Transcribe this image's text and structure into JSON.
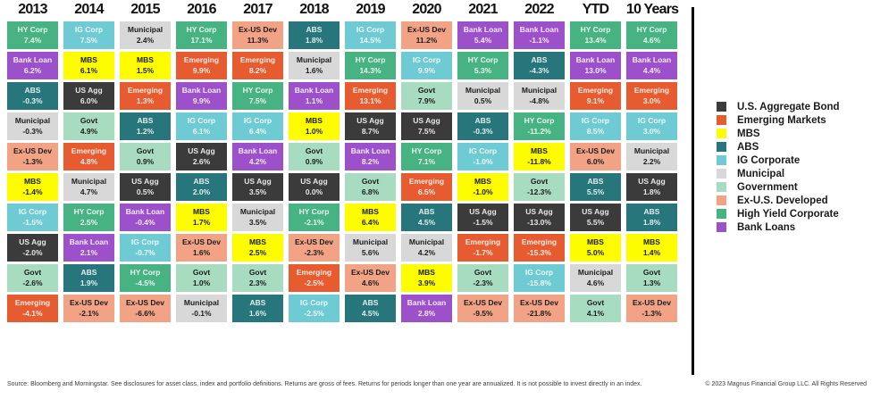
{
  "chart_data": {
    "type": "table",
    "title": "Fixed income asset class returns by calendar year (quilt chart)",
    "legend_position": "right",
    "asset_classes": [
      {
        "key": "US Agg",
        "legend_label": "U.S. Aggregate Bond",
        "color": "#3b3b3b",
        "text": "light"
      },
      {
        "key": "Emerging",
        "legend_label": "Emerging Markets",
        "color": "#e65c30",
        "text": "light"
      },
      {
        "key": "MBS",
        "legend_label": "MBS",
        "color": "#fdfd00",
        "text": "dark"
      },
      {
        "key": "ABS",
        "legend_label": "ABS",
        "color": "#26767b",
        "text": "light"
      },
      {
        "key": "IG Corp",
        "legend_label": "IG Corporate",
        "color": "#6ecbd3",
        "text": "light"
      },
      {
        "key": "Municipal",
        "legend_label": "Municipal",
        "color": "#d8d8d8",
        "text": "dark"
      },
      {
        "key": "Govt",
        "legend_label": "Government",
        "color": "#a8dcc1",
        "text": "dark"
      },
      {
        "key": "Ex-US Dev",
        "legend_label": "Ex-U.S. Developed",
        "color": "#f2a386",
        "text": "dark"
      },
      {
        "key": "HY Corp",
        "legend_label": "High Yield Corporate",
        "color": "#47b383",
        "text": "light"
      },
      {
        "key": "Bank Loan",
        "legend_label": "Bank Loans",
        "color": "#9c51cb",
        "text": "light"
      }
    ],
    "columns": [
      {
        "label": "2013",
        "cells": [
          [
            "HY Corp",
            "7.4%"
          ],
          [
            "Bank Loan",
            "6.2%"
          ],
          [
            "ABS",
            "-0.3%"
          ],
          [
            "Municipal",
            "-0.3%"
          ],
          [
            "Ex-US Dev",
            "-1.3%"
          ],
          [
            "MBS",
            "-1.4%"
          ],
          [
            "IG Corp",
            "-1.5%"
          ],
          [
            "US Agg",
            "-2.0%"
          ],
          [
            "Govt",
            "-2.6%"
          ],
          [
            "Emerging",
            "-4.1%"
          ]
        ]
      },
      {
        "label": "2014",
        "cells": [
          [
            "IG Corp",
            "7.5%"
          ],
          [
            "MBS",
            "6.1%"
          ],
          [
            "US Agg",
            "6.0%"
          ],
          [
            "Govt",
            "4.9%"
          ],
          [
            "Emerging",
            "4.8%"
          ],
          [
            "Municipal",
            "4.7%"
          ],
          [
            "HY Corp",
            "2.5%"
          ],
          [
            "Bank Loan",
            "2.1%"
          ],
          [
            "ABS",
            "1.9%"
          ],
          [
            "Ex-US Dev",
            "-2.1%"
          ]
        ]
      },
      {
        "label": "2015",
        "cells": [
          [
            "Municipal",
            "2.4%"
          ],
          [
            "MBS",
            "1.5%"
          ],
          [
            "Emerging",
            "1.3%"
          ],
          [
            "ABS",
            "1.2%"
          ],
          [
            "Govt",
            "0.9%"
          ],
          [
            "US Agg",
            "0.5%"
          ],
          [
            "Bank Loan",
            "-0.4%"
          ],
          [
            "IG Corp",
            "-0.7%"
          ],
          [
            "HY Corp",
            "-4.5%"
          ],
          [
            "Ex-US Dev",
            "-6.6%"
          ]
        ]
      },
      {
        "label": "2016",
        "cells": [
          [
            "HY Corp",
            "17.1%"
          ],
          [
            "Emerging",
            "9.9%"
          ],
          [
            "Bank Loan",
            "9.9%"
          ],
          [
            "IG Corp",
            "6.1%"
          ],
          [
            "US Agg",
            "2.6%"
          ],
          [
            "ABS",
            "2.0%"
          ],
          [
            "MBS",
            "1.7%"
          ],
          [
            "Ex-US Dev",
            "1.6%"
          ],
          [
            "Govt",
            "1.0%"
          ],
          [
            "Municipal",
            "-0.1%"
          ]
        ]
      },
      {
        "label": "2017",
        "cells": [
          [
            "Ex-US Dev",
            "11.3%"
          ],
          [
            "Emerging",
            "8.2%"
          ],
          [
            "HY Corp",
            "7.5%"
          ],
          [
            "IG Corp",
            "6.4%"
          ],
          [
            "Bank Loan",
            "4.2%"
          ],
          [
            "US Agg",
            "3.5%"
          ],
          [
            "Municipal",
            "3.5%"
          ],
          [
            "MBS",
            "2.5%"
          ],
          [
            "Govt",
            "2.3%"
          ],
          [
            "ABS",
            "1.6%"
          ]
        ]
      },
      {
        "label": "2018",
        "cells": [
          [
            "ABS",
            "1.8%"
          ],
          [
            "Municipal",
            "1.6%"
          ],
          [
            "Bank Loan",
            "1.1%"
          ],
          [
            "MBS",
            "1.0%"
          ],
          [
            "Govt",
            "0.9%"
          ],
          [
            "US Agg",
            "0.0%"
          ],
          [
            "HY Corp",
            "-2.1%"
          ],
          [
            "Ex-US Dev",
            "-2.3%"
          ],
          [
            "Emerging",
            "-2.5%"
          ],
          [
            "IG Corp",
            "-2.5%"
          ]
        ]
      },
      {
        "label": "2019",
        "cells": [
          [
            "IG Corp",
            "14.5%"
          ],
          [
            "HY Corp",
            "14.3%"
          ],
          [
            "Emerging",
            "13.1%"
          ],
          [
            "US Agg",
            "8.7%"
          ],
          [
            "Bank Loan",
            "8.2%"
          ],
          [
            "Govt",
            "6.8%"
          ],
          [
            "MBS",
            "6.4%"
          ],
          [
            "Municipal",
            "5.6%"
          ],
          [
            "Ex-US Dev",
            "4.6%"
          ],
          [
            "ABS",
            "4.5%"
          ]
        ]
      },
      {
        "label": "2020",
        "cells": [
          [
            "Ex-US Dev",
            "11.2%"
          ],
          [
            "IG Corp",
            "9.9%"
          ],
          [
            "Govt",
            "7.9%"
          ],
          [
            "US Agg",
            "7.5%"
          ],
          [
            "HY Corp",
            "7.1%"
          ],
          [
            "Emerging",
            "6.5%"
          ],
          [
            "ABS",
            "4.5%"
          ],
          [
            "Municipal",
            "4.2%"
          ],
          [
            "MBS",
            "3.9%"
          ],
          [
            "Bank Loan",
            "2.8%"
          ]
        ]
      },
      {
        "label": "2021",
        "cells": [
          [
            "Bank Loan",
            "5.4%"
          ],
          [
            "HY Corp",
            "5.3%"
          ],
          [
            "Municipal",
            "0.5%"
          ],
          [
            "ABS",
            "-0.3%"
          ],
          [
            "IG Corp",
            "-1.0%"
          ],
          [
            "MBS",
            "-1.0%"
          ],
          [
            "US Agg",
            "-1.5%"
          ],
          [
            "Emerging",
            "-1.7%"
          ],
          [
            "Govt",
            "-2.3%"
          ],
          [
            "Ex-US Dev",
            "-9.5%"
          ]
        ]
      },
      {
        "label": "2022",
        "cells": [
          [
            "Bank Loan",
            "-1.1%"
          ],
          [
            "ABS",
            "-4.3%"
          ],
          [
            "Municipal",
            "-4.8%"
          ],
          [
            "HY Corp",
            "-11.2%"
          ],
          [
            "MBS",
            "-11.8%"
          ],
          [
            "Govt",
            "-12.3%"
          ],
          [
            "US Agg",
            "-13.0%"
          ],
          [
            "Emerging",
            "-15.3%"
          ],
          [
            "IG Corp",
            "-15.8%"
          ],
          [
            "Ex-US Dev",
            "-21.8%"
          ]
        ]
      },
      {
        "label": "YTD",
        "cells": [
          [
            "HY Corp",
            "13.4%"
          ],
          [
            "Bank Loan",
            "13.0%"
          ],
          [
            "Emerging",
            "9.1%"
          ],
          [
            "IG Corp",
            "8.5%"
          ],
          [
            "Ex-US Dev",
            "6.0%"
          ],
          [
            "ABS",
            "5.5%"
          ],
          [
            "US Agg",
            "5.5%"
          ],
          [
            "MBS",
            "5.0%"
          ],
          [
            "Municipal",
            "4.6%"
          ],
          [
            "Govt",
            "4.1%"
          ]
        ]
      },
      {
        "label": "10 Years",
        "cells": [
          [
            "HY Corp",
            "4.6%"
          ],
          [
            "Bank Loan",
            "4.4%"
          ],
          [
            "Emerging",
            "3.0%"
          ],
          [
            "IG Corp",
            "3.0%"
          ],
          [
            "Municipal",
            "2.2%"
          ],
          [
            "US Agg",
            "1.8%"
          ],
          [
            "ABS",
            "1.8%"
          ],
          [
            "MBS",
            "1.4%"
          ],
          [
            "Govt",
            "1.3%"
          ],
          [
            "Ex-US Dev",
            "-1.3%"
          ]
        ]
      }
    ]
  },
  "footer": {
    "source": "Source: Bloomberg and Morningstar. See disclosures for asset class, index and portfolio definitions. Returns are gross of fees. Returns for periods longer than one year are annualized. It is not possible to invest directly in an index.",
    "copyright": "© 2023 Magnus Financial Group LLC. All Rights Reserved"
  }
}
